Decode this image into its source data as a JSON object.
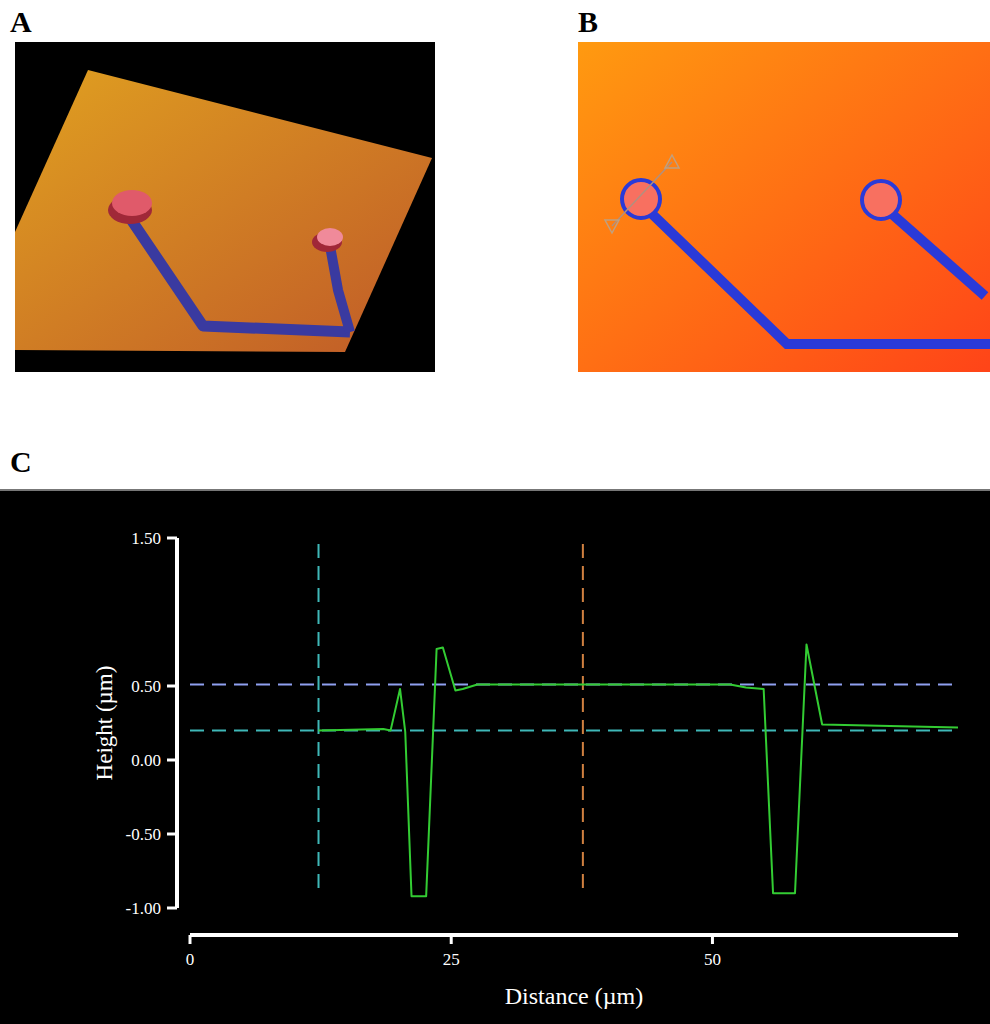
{
  "panel_labels": [
    "A",
    "B",
    "C"
  ],
  "chart_data": {
    "type": "line",
    "xlabel": "Distance (µm)",
    "ylabel": "Height (µm)",
    "x": [
      12.3,
      18.5,
      19.2,
      20.1,
      20.6,
      21.2,
      22.6,
      23.6,
      24.2,
      25.4,
      26.1,
      27.5,
      51.7,
      53.2,
      54.9,
      55.8,
      57.9,
      59.0,
      60.5,
      73.5
    ],
    "values": [
      0.2,
      0.21,
      0.2,
      0.48,
      0.19,
      -0.92,
      -0.92,
      0.75,
      0.76,
      0.47,
      0.48,
      0.51,
      0.51,
      0.49,
      0.48,
      -0.9,
      -0.9,
      0.78,
      0.24,
      0.22
    ],
    "color": "#33cc33",
    "xlim": [
      0,
      73.5
    ],
    "ylim": [
      -1.0,
      1.5
    ],
    "xticks": [
      0,
      25,
      50
    ],
    "yticks": [
      {
        "value": 1.5,
        "label": "1.50"
      },
      {
        "value": 0.5,
        "label": "0.50"
      },
      {
        "value": 0,
        "label": "0.00"
      },
      {
        "value": -0.5,
        "label": "-0.50"
      },
      {
        "value": -1.0,
        "label": "-1.00"
      }
    ],
    "grid": false,
    "hlines": [
      {
        "value": 0.51,
        "color": "#8fa0f0"
      },
      {
        "value": 0.2,
        "color": "#3fb8b8"
      }
    ],
    "vlines": [
      {
        "value": 12.3,
        "color": "#3fb8b8"
      },
      {
        "value": 37.6,
        "color": "#d08040"
      }
    ]
  }
}
